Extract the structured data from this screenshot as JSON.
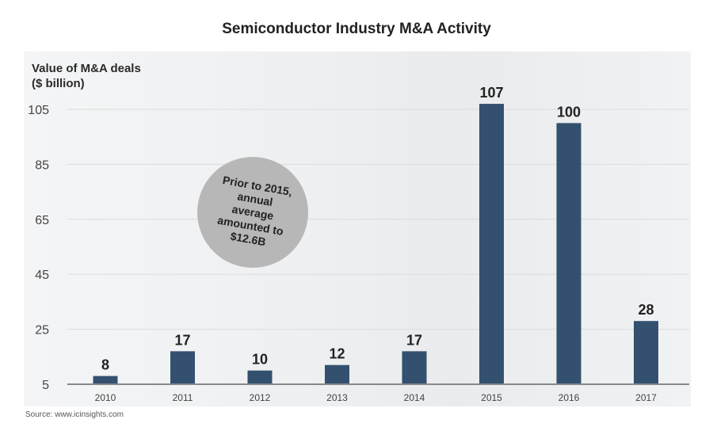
{
  "chart_data": {
    "type": "bar",
    "title": "Semiconductor Industry M&A Activity",
    "ylabel_line1": "Value of M&A deals",
    "ylabel_line2": "($ billion)",
    "xlabel": "",
    "categories": [
      "2010",
      "2011",
      "2012",
      "2013",
      "2014",
      "2015",
      "2016",
      "2017"
    ],
    "values": [
      8,
      17,
      10,
      12,
      17,
      107,
      100,
      28
    ],
    "yticks": [
      5,
      25,
      45,
      65,
      85,
      105
    ],
    "ylim": [
      5,
      110
    ],
    "grid": true,
    "bar_color": "#34506f",
    "annotation": "Prior to 2015, annual average amounted to $12.6B",
    "source": "Source: www.icinsights.com"
  }
}
